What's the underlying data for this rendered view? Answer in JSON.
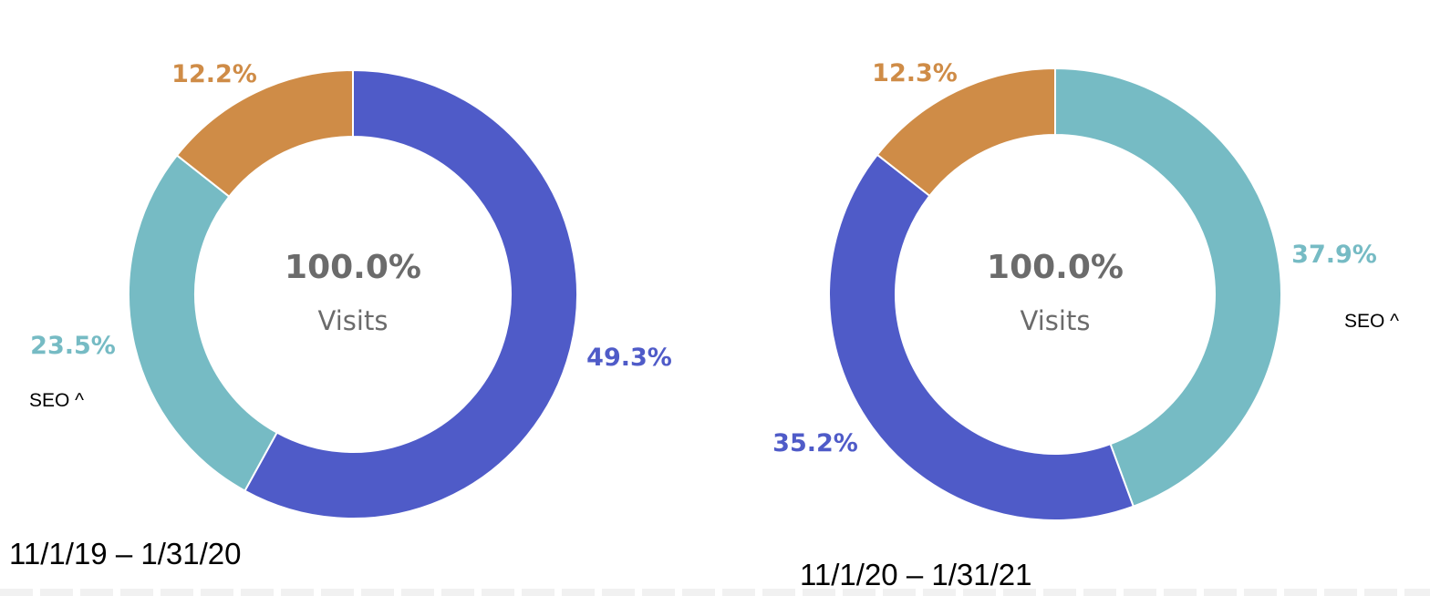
{
  "colors": {
    "purple": "#4f5bc8",
    "teal": "#76bbc4",
    "orange": "#cf8c47",
    "center_text": "#6b6b6b"
  },
  "chart_data": [
    {
      "type": "pie",
      "period_label": "11/1/19 – 1/31/20",
      "center_value": "100.0%",
      "center_label": "Visits",
      "annotation": "SEO ^",
      "slices": [
        {
          "value": 49.3,
          "label": "49.3%",
          "color": "#4f5bc8"
        },
        {
          "value": 23.5,
          "label": "23.5%",
          "color": "#76bbc4"
        },
        {
          "value": 12.2,
          "label": "12.2%",
          "color": "#cf8c47"
        }
      ]
    },
    {
      "type": "pie",
      "period_label": "11/1/20 – 1/31/21",
      "center_value": "100.0%",
      "center_label": "Visits",
      "annotation": "SEO ^",
      "slices": [
        {
          "value": 37.9,
          "label": "37.9%",
          "color": "#76bbc4"
        },
        {
          "value": 35.2,
          "label": "35.2%",
          "color": "#4f5bc8"
        },
        {
          "value": 12.3,
          "label": "12.3%",
          "color": "#cf8c47"
        }
      ]
    }
  ]
}
